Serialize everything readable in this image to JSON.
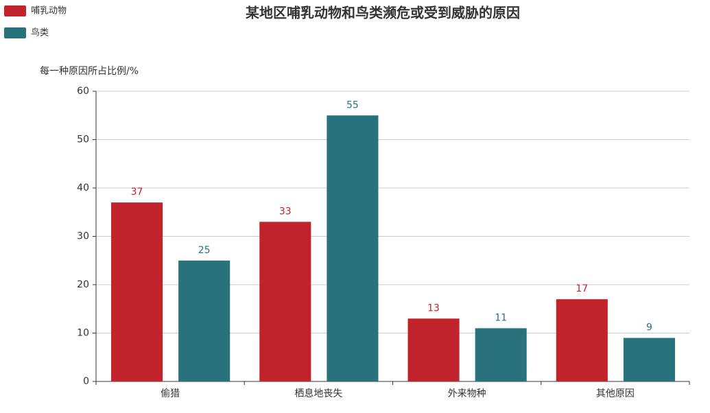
{
  "chart_data": {
    "type": "bar",
    "title": "某地区哺乳动物和鸟类濒危或受到威胁的原因",
    "y_label": "每一种原因所占比例/%",
    "categories": [
      "偷猎",
      "栖息地丧失",
      "外来物种",
      "其他原因"
    ],
    "series": [
      {
        "name": "哺乳动物",
        "color": "#c1232b",
        "values": [
          37,
          33,
          13,
          17
        ]
      },
      {
        "name": "鸟类",
        "color": "#27727b",
        "values": [
          25,
          55,
          11,
          9
        ]
      }
    ],
    "ylim": [
      0,
      60
    ],
    "yticks": [
      0,
      10,
      20,
      30,
      40,
      50,
      60
    ],
    "grid": true,
    "legend": "top-left"
  }
}
